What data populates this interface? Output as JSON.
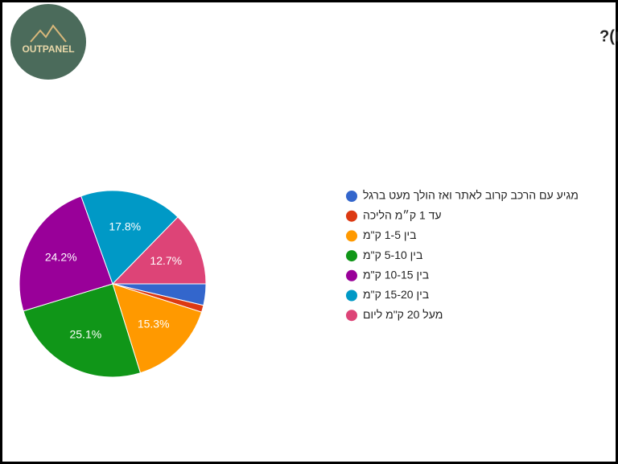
{
  "logo": {
    "text": "OUTPANEL"
  },
  "chart_data": {
    "type": "pie",
    "title": "מה אורך המסלול שלך בדרך כלל (ליום)?",
    "categories": [
      "מגיע עם הרכב קרוב לאתר ואז הולך מעט ברגל",
      "עד 1 ק״מ הליכה",
      "בין 1-5 ק\"מ",
      "בין 5-10 ק\"מ",
      "בין 10-15 ק\"מ",
      "בין 15-20 ק\"מ",
      "מעל 20 ק\"מ ליום"
    ],
    "values": [
      3.7,
      1.2,
      15.3,
      25.1,
      24.2,
      17.8,
      12.7
    ],
    "value_labels": [
      null,
      null,
      "15.3%",
      "25.1%",
      "24.2%",
      "17.8%",
      "12.7%"
    ],
    "colors": [
      "#3366cc",
      "#dc3912",
      "#ff9900",
      "#109618",
      "#990099",
      "#0099c6",
      "#dd4477"
    ],
    "legend": "right"
  }
}
